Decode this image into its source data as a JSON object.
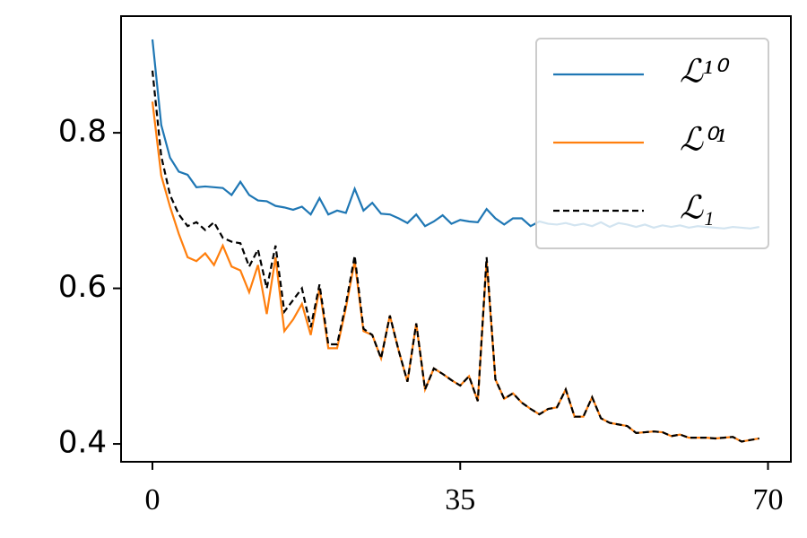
{
  "chart_data": {
    "type": "line",
    "x": [
      0,
      1,
      2,
      3,
      4,
      5,
      6,
      7,
      8,
      9,
      10,
      11,
      12,
      13,
      14,
      15,
      16,
      17,
      18,
      19,
      20,
      21,
      22,
      23,
      24,
      25,
      26,
      27,
      28,
      29,
      30,
      31,
      32,
      33,
      34,
      35,
      36,
      37,
      38,
      39,
      40,
      41,
      42,
      43,
      44,
      45,
      46,
      47,
      48,
      49,
      50,
      51,
      52,
      53,
      54,
      55,
      56,
      57,
      58,
      59,
      60,
      61,
      62,
      63,
      64,
      65,
      66,
      67,
      68,
      69
    ],
    "series": [
      {
        "name": "ℒ¹⁰",
        "color": "#1f77b4",
        "dash": false,
        "values": [
          0.92,
          0.81,
          0.768,
          0.75,
          0.746,
          0.73,
          0.731,
          0.73,
          0.729,
          0.72,
          0.737,
          0.72,
          0.713,
          0.712,
          0.706,
          0.704,
          0.701,
          0.705,
          0.695,
          0.716,
          0.695,
          0.7,
          0.697,
          0.728,
          0.7,
          0.71,
          0.696,
          0.695,
          0.69,
          0.684,
          0.695,
          0.68,
          0.686,
          0.694,
          0.683,
          0.688,
          0.686,
          0.685,
          0.702,
          0.69,
          0.682,
          0.69,
          0.69,
          0.68,
          0.686,
          0.683,
          0.682,
          0.684,
          0.681,
          0.683,
          0.68,
          0.685,
          0.679,
          0.684,
          0.682,
          0.679,
          0.682,
          0.678,
          0.681,
          0.679,
          0.681,
          0.678,
          0.68,
          0.679,
          0.678,
          0.677,
          0.679,
          0.678,
          0.677,
          0.679
        ]
      },
      {
        "name": "ℒ⁰¹",
        "color": "#ff7f0e",
        "dash": false,
        "values": [
          0.84,
          0.745,
          0.705,
          0.67,
          0.64,
          0.635,
          0.645,
          0.63,
          0.655,
          0.628,
          0.623,
          0.595,
          0.63,
          0.567,
          0.64,
          0.545,
          0.56,
          0.58,
          0.54,
          0.6,
          0.523,
          0.523,
          0.575,
          0.635,
          0.545,
          0.54,
          0.51,
          0.565,
          0.52,
          0.48,
          0.555,
          0.47,
          0.497,
          0.49,
          0.482,
          0.475,
          0.487,
          0.455,
          0.635,
          0.483,
          0.458,
          0.465,
          0.453,
          0.445,
          0.438,
          0.445,
          0.447,
          0.47,
          0.435,
          0.435,
          0.46,
          0.433,
          0.427,
          0.425,
          0.423,
          0.414,
          0.415,
          0.416,
          0.415,
          0.41,
          0.412,
          0.408,
          0.408,
          0.408,
          0.407,
          0.408,
          0.409,
          0.403,
          0.405,
          0.407
        ]
      },
      {
        "name": "ℒ₁",
        "color": "#000000",
        "dash": true,
        "values": [
          0.88,
          0.77,
          0.72,
          0.695,
          0.68,
          0.685,
          0.675,
          0.685,
          0.665,
          0.66,
          0.658,
          0.628,
          0.65,
          0.6,
          0.655,
          0.57,
          0.585,
          0.6,
          0.55,
          0.605,
          0.528,
          0.528,
          0.58,
          0.642,
          0.548,
          0.54,
          0.51,
          0.565,
          0.52,
          0.48,
          0.555,
          0.47,
          0.497,
          0.49,
          0.482,
          0.475,
          0.487,
          0.455,
          0.64,
          0.483,
          0.458,
          0.465,
          0.453,
          0.445,
          0.438,
          0.445,
          0.447,
          0.47,
          0.435,
          0.435,
          0.46,
          0.433,
          0.427,
          0.425,
          0.423,
          0.414,
          0.415,
          0.416,
          0.415,
          0.41,
          0.412,
          0.408,
          0.408,
          0.408,
          0.407,
          0.408,
          0.409,
          0.403,
          0.405,
          0.407
        ]
      }
    ],
    "xlim": [
      -3.57,
      72.6
    ],
    "ylim": [
      0.377,
      0.95
    ],
    "xticks": [
      0,
      35,
      70
    ],
    "yticks": [
      0.4,
      0.6,
      0.8
    ],
    "legend": "upper right"
  }
}
